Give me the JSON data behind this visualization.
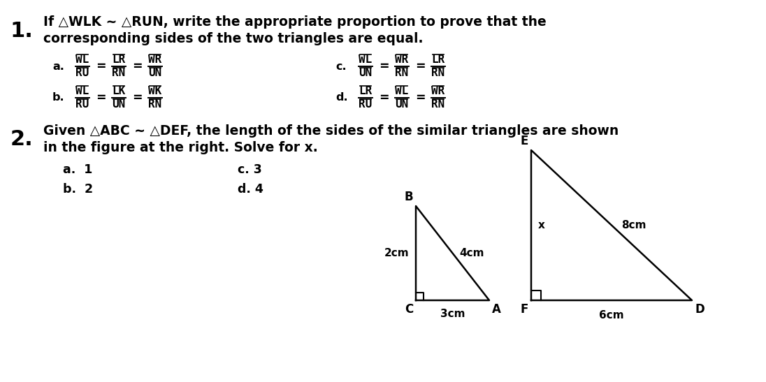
{
  "bg_color": "#ffffff",
  "q1_number": "1.",
  "q1_text_line1": "If △WLK ~ △RUN, write the appropriate proportion to prove that the",
  "q1_text_line2": "corresponding sides of the two triangles are equal.",
  "q1_a_fracs": [
    [
      "WL",
      "RU"
    ],
    [
      "LR",
      "RN"
    ],
    [
      "WR",
      "UN"
    ]
  ],
  "q1_b_fracs": [
    [
      "WL",
      "RU"
    ],
    [
      "LK",
      "UN"
    ],
    [
      "WK",
      "RN"
    ]
  ],
  "q1_c_fracs": [
    [
      "WL",
      "UN"
    ],
    [
      "WR",
      "RN"
    ],
    [
      "LR",
      "RN"
    ]
  ],
  "q1_d_fracs": [
    [
      "LR",
      "RU"
    ],
    [
      "WL",
      "UN"
    ],
    [
      "WR",
      "RN"
    ]
  ],
  "q2_number": "2.",
  "q2_text_line1": "Given △ABC ~ △DEF, the length of the sides of the similar triangles are shown",
  "q2_text_line2": "in the figure at the right. Solve for x.",
  "q2_choices": [
    [
      "a.  1",
      "c. 3"
    ],
    [
      "b.  2",
      "d. 4"
    ]
  ],
  "tri1": {
    "C": [
      595,
      430
    ],
    "A": [
      700,
      430
    ],
    "B": [
      595,
      295
    ],
    "label_B": "B",
    "label_C": "C",
    "label_A": "A",
    "side_CA": "3cm",
    "side_CB": "2cm",
    "side_BA": "4cm"
  },
  "tri2": {
    "F": [
      760,
      430
    ],
    "D": [
      990,
      430
    ],
    "E": [
      760,
      215
    ],
    "label_E": "E",
    "label_F": "F",
    "label_D": "D",
    "side_FD": "6cm",
    "side_EF": "x",
    "side_ED": "8cm"
  }
}
